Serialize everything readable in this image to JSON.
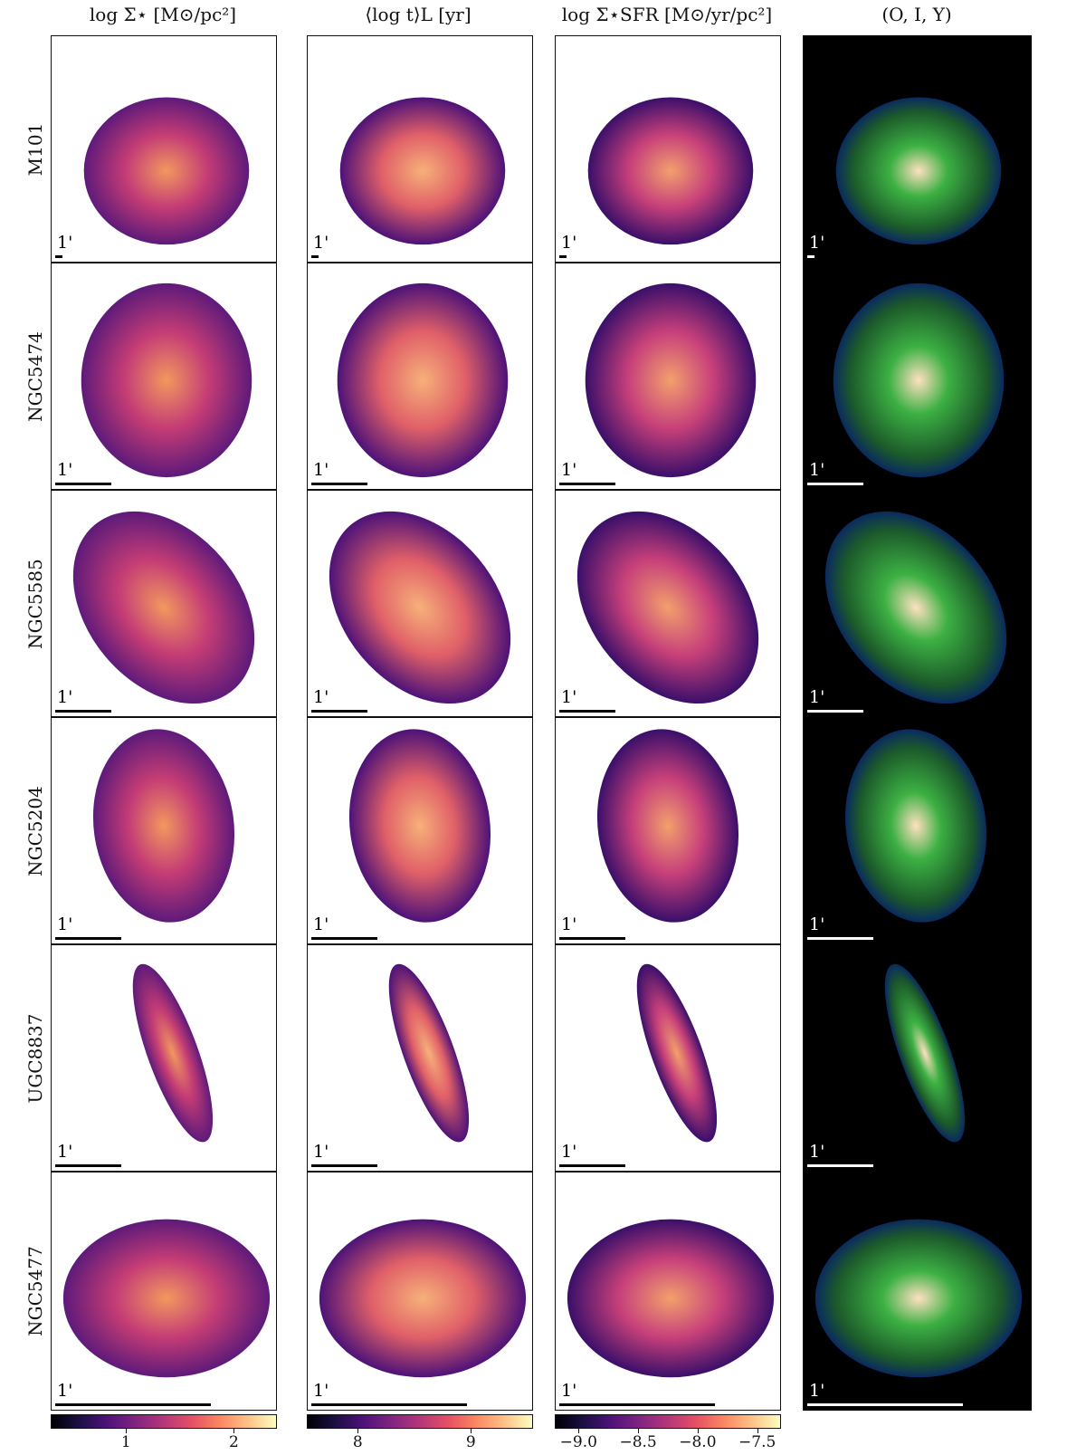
{
  "columns": [
    {
      "title": "log Σ⋆ [M⊙/pc²]",
      "key": "mass"
    },
    {
      "title": "⟨log t⟩L [yr]",
      "key": "age"
    },
    {
      "title": "log Σ⋆SFR [M⊙/yr/pc²]",
      "key": "sfr"
    },
    {
      "title": "(O, I, Y)",
      "key": "rgb"
    }
  ],
  "rows": [
    {
      "name": "M101",
      "scale_label": "1'"
    },
    {
      "name": "NGC5474",
      "scale_label": "1'"
    },
    {
      "name": "NGC5585",
      "scale_label": "1'"
    },
    {
      "name": "NGC5204",
      "scale_label": "1'"
    },
    {
      "name": "UGC8837",
      "scale_label": "1'"
    },
    {
      "name": "NGC5477",
      "scale_label": "1'"
    }
  ],
  "colorbars": [
    {
      "column": "mass",
      "colormap": "magma",
      "ticks": [
        "1",
        "2"
      ],
      "tick_values": [
        1,
        2
      ],
      "range": [
        0.3,
        2.4
      ]
    },
    {
      "column": "age",
      "colormap": "magma",
      "ticks": [
        "8",
        "9"
      ],
      "tick_values": [
        8,
        9
      ],
      "range": [
        7.55,
        9.55
      ]
    },
    {
      "column": "sfr",
      "colormap": "magma",
      "ticks": [
        "−9.0",
        "−8.5",
        "−8.0",
        "−7.5"
      ],
      "tick_values": [
        -9.0,
        -8.5,
        -8.0,
        -7.5
      ],
      "range": [
        -9.2,
        -7.3
      ]
    }
  ]
}
